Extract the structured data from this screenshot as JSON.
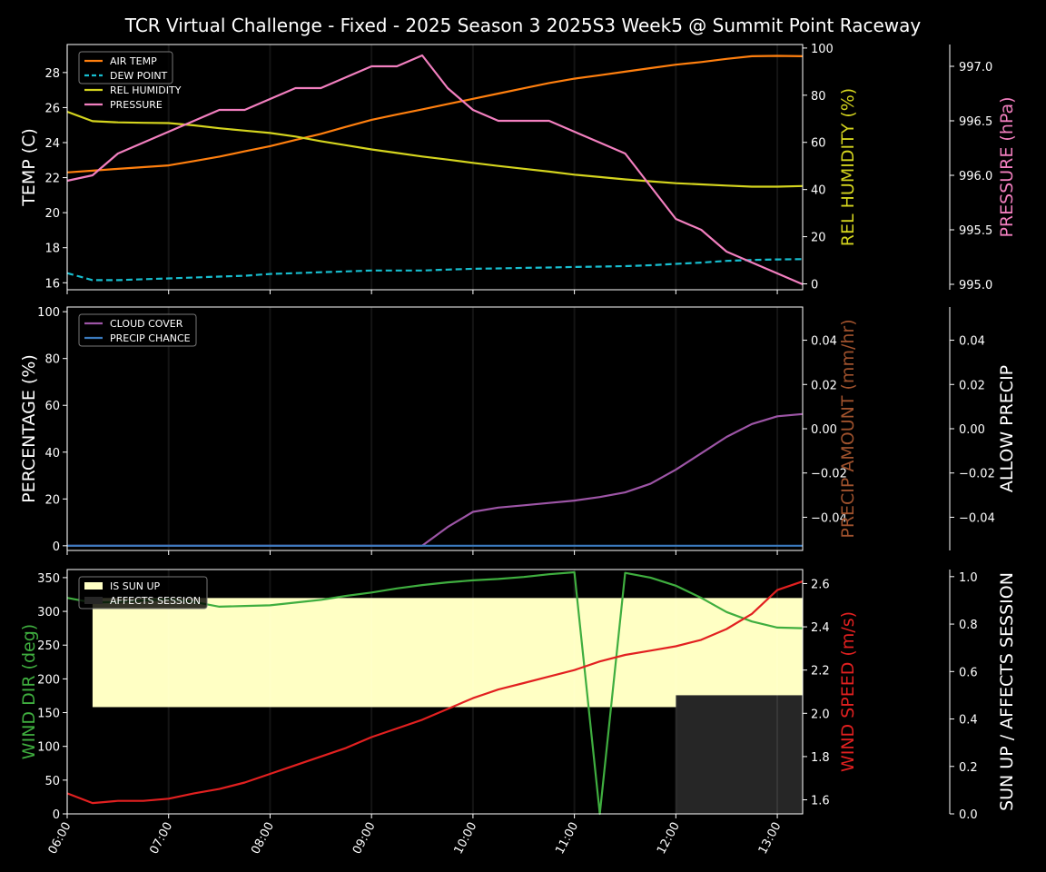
{
  "title": "TCR Virtual Challenge - Fixed - 2025 Season 3 2025S3 Week5 @ Summit Point Raceway",
  "colors": {
    "air_temp": "#ff7f0e",
    "dew_point": "#17becf",
    "humidity": "#d4d41e",
    "pressure": "#f27fbf",
    "cloud": "#9d55a6",
    "precip_chance": "#3b7bbf",
    "precip_amount": "#a0522d",
    "wind_dir": "#3fae3f",
    "wind_speed": "#e22020",
    "sun_up": "#ffffc4",
    "affects_session": "#262626"
  },
  "chart_data": [
    {
      "type": "line",
      "name": "temperature",
      "x": [
        "06:00",
        "06:15",
        "06:30",
        "06:45",
        "07:00",
        "07:15",
        "07:30",
        "07:45",
        "08:00",
        "08:15",
        "08:30",
        "08:45",
        "09:00",
        "09:15",
        "09:30",
        "09:45",
        "10:00",
        "10:15",
        "10:30",
        "10:45",
        "11:00",
        "11:15",
        "11:30",
        "11:45",
        "12:00",
        "12:15",
        "12:30",
        "12:45",
        "13:00",
        "13:15"
      ],
      "xlim": [
        "06:00",
        "13:15"
      ],
      "x_ticks": [
        "06:00",
        "07:00",
        "08:00",
        "09:00",
        "10:00",
        "11:00",
        "12:00",
        "13:00"
      ],
      "ylabel": "TEMP (C)",
      "ylim": [
        15.6,
        29.6
      ],
      "y_ticks": [
        16,
        18,
        20,
        22,
        24,
        26,
        28
      ],
      "ylabel_right": "REL HUMIDITY (%)",
      "ylim_right": [
        -2.5,
        101.5
      ],
      "y_ticks_right": [
        0,
        20,
        40,
        60,
        80,
        100
      ],
      "ylabel_far_right": "PRESSURE (hPa)",
      "ylim_far_right": [
        994.95,
        997.2
      ],
      "y_ticks_far_right": [
        "995.0",
        "995.5",
        "996.0",
        "996.5",
        "997.0"
      ],
      "legend": "top-left",
      "series": [
        {
          "name": "AIR TEMP",
          "axis": "left",
          "style": "solid",
          "values": [
            22.3,
            22.4,
            22.5,
            22.6,
            22.7,
            22.95,
            23.2,
            23.5,
            23.8,
            24.15,
            24.5,
            24.9,
            25.3,
            25.6,
            25.9,
            26.2,
            26.5,
            26.8,
            27.1,
            27.4,
            27.65,
            27.85,
            28.05,
            28.25,
            28.45,
            28.6,
            28.78,
            28.93,
            28.95,
            28.93
          ]
        },
        {
          "name": "DEW POINT",
          "axis": "left",
          "style": "dashed",
          "values": [
            16.55,
            16.15,
            16.15,
            16.2,
            16.25,
            16.3,
            16.35,
            16.4,
            16.5,
            16.55,
            16.6,
            16.65,
            16.7,
            16.7,
            16.7,
            16.75,
            16.8,
            16.82,
            16.85,
            16.87,
            16.9,
            16.92,
            16.95,
            17.0,
            17.08,
            17.15,
            17.25,
            17.3,
            17.33,
            17.35
          ]
        },
        {
          "name": "REL HUMIDITY",
          "axis": "right",
          "style": "solid",
          "values": [
            73,
            69,
            68.5,
            68.3,
            68.2,
            67.2,
            66,
            65,
            64,
            62.5,
            60.5,
            58.8,
            57,
            55.5,
            54,
            52.7,
            51.3,
            50,
            48.8,
            47.6,
            46.3,
            45.3,
            44.3,
            43.5,
            42.7,
            42.2,
            41.7,
            41.2,
            41.2,
            41.5
          ]
        },
        {
          "name": "PRESSURE",
          "axis": "far_right",
          "style": "solid",
          "values": [
            995.95,
            996.0,
            996.2,
            996.3,
            996.4,
            996.5,
            996.6,
            996.6,
            996.7,
            996.8,
            996.8,
            996.9,
            997.0,
            997.0,
            997.1,
            996.8,
            996.6,
            996.5,
            996.5,
            996.5,
            996.4,
            996.3,
            996.2,
            995.9,
            995.6,
            995.5,
            995.3,
            995.2,
            995.1,
            995.0
          ]
        }
      ]
    },
    {
      "type": "line",
      "name": "clouds_precip",
      "x": [
        "06:00",
        "06:15",
        "06:30",
        "06:45",
        "07:00",
        "07:15",
        "07:30",
        "07:45",
        "08:00",
        "08:15",
        "08:30",
        "08:45",
        "09:00",
        "09:15",
        "09:30",
        "09:45",
        "10:00",
        "10:15",
        "10:30",
        "10:45",
        "11:00",
        "11:15",
        "11:30",
        "11:45",
        "12:00",
        "12:15",
        "12:30",
        "12:45",
        "13:00",
        "13:15"
      ],
      "ylabel": "PERCENTAGE (%)",
      "ylim": [
        -2,
        102
      ],
      "y_ticks": [
        0,
        20,
        40,
        60,
        80,
        100
      ],
      "ylabel_right": "PRECIP AMOUNT (mm/hr)",
      "ylim_right": [
        -0.055,
        0.055
      ],
      "y_ticks_right": [
        "−0.04",
        "−0.02",
        "0.00",
        "0.02",
        "0.04"
      ],
      "ylabel_far_right": "ALLOW PRECIP",
      "ylim_far_right": [
        -0.055,
        0.055
      ],
      "y_ticks_far_right": [
        "−0.04",
        "−0.02",
        "0.00",
        "0.02",
        "0.04"
      ],
      "legend": "top-left",
      "series": [
        {
          "name": "CLOUD COVER",
          "axis": "left",
          "values": [
            0,
            0,
            0,
            0,
            0,
            0,
            0,
            0,
            0,
            0,
            0,
            0,
            0,
            0,
            0,
            8,
            14.5,
            16.3,
            17.3,
            18.3,
            19.3,
            20.8,
            22.8,
            26.5,
            32.5,
            39.5,
            46.5,
            52,
            55.3,
            56.3
          ]
        },
        {
          "name": "PRECIP CHANCE",
          "axis": "left",
          "values": [
            0,
            0,
            0,
            0,
            0,
            0,
            0,
            0,
            0,
            0,
            0,
            0,
            0,
            0,
            0,
            0,
            0,
            0,
            0,
            0,
            0,
            0,
            0,
            0,
            0,
            0,
            0,
            0,
            0,
            0
          ]
        }
      ]
    },
    {
      "type": "line",
      "name": "wind_sun",
      "x": [
        "06:00",
        "06:15",
        "06:30",
        "06:45",
        "07:00",
        "07:15",
        "07:30",
        "07:45",
        "08:00",
        "08:15",
        "08:30",
        "08:45",
        "09:00",
        "09:15",
        "09:30",
        "09:45",
        "10:00",
        "10:15",
        "10:30",
        "10:45",
        "11:00",
        "11:15",
        "11:30",
        "11:45",
        "12:00",
        "12:15",
        "12:30",
        "12:45",
        "13:00",
        "13:15"
      ],
      "ylabel": "WIND DIR (deg)",
      "ylim": [
        0,
        362
      ],
      "y_ticks": [
        0,
        50,
        100,
        150,
        200,
        250,
        300,
        350
      ],
      "ylabel_right": "WIND SPEED (m/s)",
      "ylim_right": [
        1.535,
        2.665
      ],
      "y_ticks_right": [
        "1.6",
        "1.8",
        "2.0",
        "2.2",
        "2.4",
        "2.6"
      ],
      "ylabel_far_right": "SUN UP / AFFECTS SESSION",
      "ylim_far_right": [
        0,
        1.03
      ],
      "y_ticks_far_right": [
        "0.0",
        "0.2",
        "0.4",
        "0.6",
        "0.8",
        "1.0"
      ],
      "legend": "top-left",
      "series": [
        {
          "name": "WIND DIR",
          "axis": "left",
          "values": [
            320,
            313,
            314,
            316,
            318,
            314,
            307,
            308,
            309,
            313,
            317,
            323,
            328,
            334,
            339,
            343,
            346,
            348,
            351,
            355,
            358,
            0,
            357,
            350,
            338,
            320,
            299,
            285,
            276,
            275
          ]
        },
        {
          "name": "WIND SPEED",
          "axis": "right",
          "values": [
            1.63,
            1.585,
            1.595,
            1.595,
            1.605,
            1.63,
            1.65,
            1.68,
            1.72,
            1.76,
            1.8,
            1.84,
            1.89,
            1.93,
            1.97,
            2.02,
            2.07,
            2.11,
            2.14,
            2.17,
            2.2,
            2.24,
            2.27,
            2.29,
            2.31,
            2.34,
            2.39,
            2.46,
            2.57,
            2.61
          ]
        }
      ],
      "bands": [
        {
          "name": "IS SUN UP",
          "axis": "far_right",
          "from": "06:15",
          "to": "13:15",
          "level": 1.0
        },
        {
          "name": "AFFECTS SESSION",
          "axis": "far_right",
          "from": "12:00",
          "to": "13:15",
          "level": 0.5
        }
      ]
    }
  ]
}
